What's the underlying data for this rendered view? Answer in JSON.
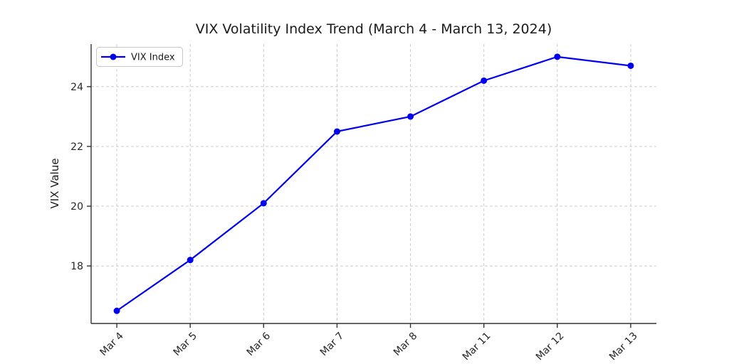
{
  "chart_data": {
    "type": "line",
    "title": "VIX Volatility Index Trend (March 4 - March 13, 2024)",
    "xlabel": "",
    "ylabel": "VIX Value",
    "categories": [
      "Mar 4",
      "Mar 5",
      "Mar 6",
      "Mar 7",
      "Mar 8",
      "Mar 11",
      "Mar 12",
      "Mar 13"
    ],
    "series": [
      {
        "name": "VIX Index",
        "values": [
          16.5,
          18.2,
          20.1,
          22.5,
          23.0,
          24.2,
          25.0,
          24.7
        ],
        "marker": "circle"
      }
    ],
    "yticks": [
      18,
      20,
      22,
      24
    ],
    "ylim": [
      16.075,
      25.425
    ],
    "grid": true,
    "grid_style": "dashed",
    "x_tick_rotation": 45,
    "legend": {
      "position": "upper left",
      "entries": [
        "VIX Index"
      ]
    }
  },
  "colors": {
    "line": "#0000ee",
    "marker": "#0000ee",
    "grid": "#cccccc",
    "spine": "#333333",
    "tick": "#333333",
    "text": "#1a1a1a",
    "background": "#ffffff",
    "legend_border": "#c8c8c8",
    "legend_fill": "#ffffff"
  }
}
